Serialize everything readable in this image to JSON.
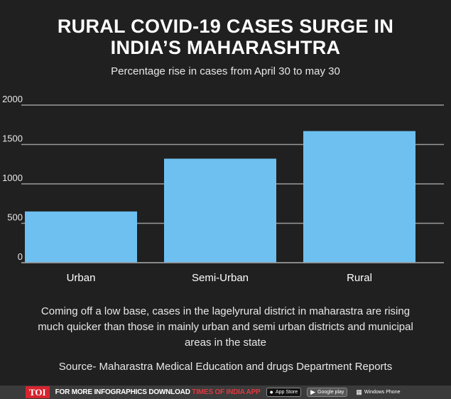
{
  "header": {
    "title_line1": "RURAL COVID-19 CASES SURGE IN",
    "title_line2": "INDIA’S MAHARASHTRA",
    "subtitle": "Percentage rise in cases from April 30 to may 30"
  },
  "chart_data": {
    "type": "bar",
    "categories": [
      "Urban",
      "Semi-Urban",
      "Rural"
    ],
    "values": [
      650,
      1320,
      1670
    ],
    "ylim": [
      0,
      2000
    ],
    "yticks": [
      "0",
      "500",
      "1000",
      "1500",
      "2000"
    ],
    "ytick_values": [
      0,
      500,
      1000,
      1500,
      2000
    ],
    "grid": true,
    "bar_color": "#6ec0f0",
    "grid_color": "#9a9a9a"
  },
  "note": "Coming off a low base, cases in the lagelyrural district in maharastra are rising much quicker than those in mainly urban and semi urban districts and municipal areas in the state",
  "source": "Source- Maharastra Medical Education and drugs Department Reports",
  "footer": {
    "logo": "TOI",
    "promo_text": "FOR MORE  INFOGRAPHICS DOWNLOAD ",
    "promo_app": "TIMES OF INDIA APP",
    "badges": {
      "app_store": "App Store",
      "google_play": "Google play",
      "windows_phone": "Windows Phone"
    },
    "icons": {
      "app_store": "apple-icon",
      "google_play": "play-icon",
      "windows_phone": "windows-icon"
    }
  }
}
